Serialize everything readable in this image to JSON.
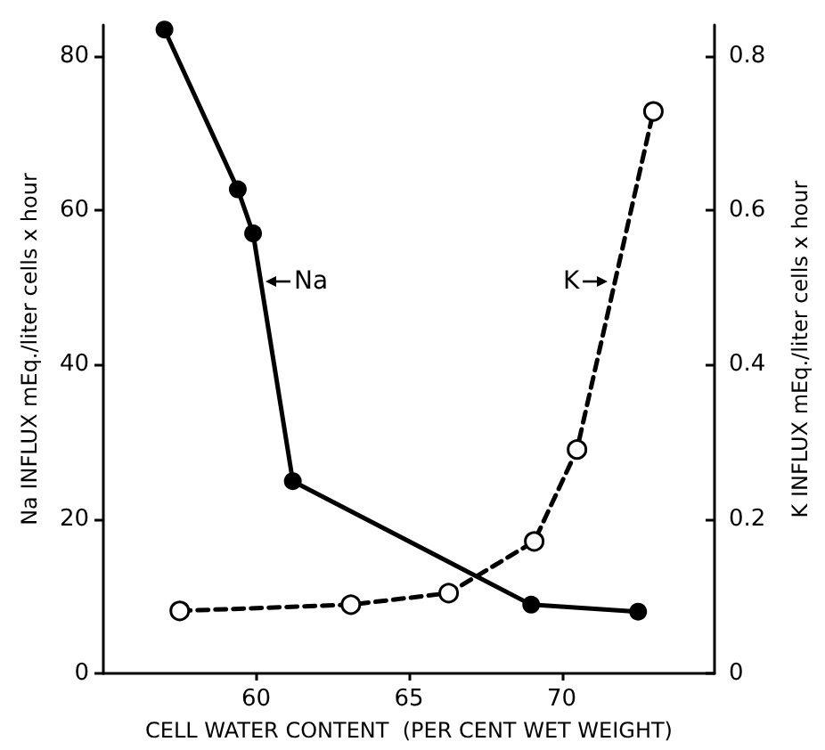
{
  "chart_data": {
    "type": "line",
    "xlabel": "CELL WATER CONTENT  (PER CENT WET WEIGHT)",
    "ylabel": "Na INFLUX mEq./liter cells x hour",
    "y2label": "K INFLUX mEq./liter cells x hour",
    "xlim": [
      55,
      75
    ],
    "xticks": [
      60,
      65,
      70
    ],
    "ylim": [
      0,
      84
    ],
    "yticks": [
      0,
      20,
      40,
      60,
      80
    ],
    "y2lim": [
      0,
      0.84
    ],
    "y2ticks": [
      0,
      0.2,
      0.4,
      0.6,
      0.8
    ],
    "marker": "circle",
    "grid": false,
    "series": [
      {
        "color": "#000000",
        "line_style": "solid",
        "x": [
          57.0,
          59.4,
          59.9,
          61.2,
          69.0,
          72.5
        ],
        "values": [
          83.4,
          62.7,
          57.0,
          24.9,
          8.9,
          8.0
        ]
      },
      {
        "color": "#000000",
        "line_style": "dashed",
        "axis": "y2",
        "x": [
          57.5,
          63.1,
          66.3,
          69.1,
          70.5,
          73.0
        ],
        "values": [
          0.081,
          0.089,
          0.104,
          0.171,
          0.29,
          0.728
        ]
      }
    ],
    "annotations": [
      "Na",
      "K"
    ]
  }
}
